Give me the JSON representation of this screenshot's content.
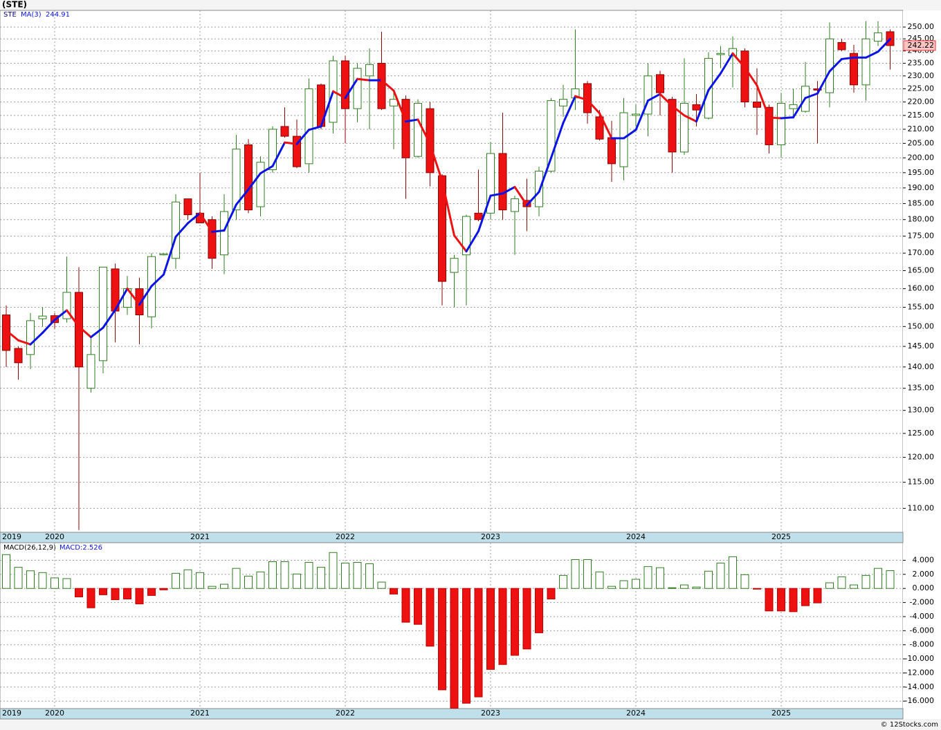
{
  "chart_data": [
    {
      "type": "candlestick",
      "title": "(STE)",
      "symbol": "STE",
      "log_scale": true,
      "grid": true,
      "categories": [
        "2019",
        null,
        null,
        null,
        "2020",
        null,
        null,
        null,
        null,
        null,
        null,
        null,
        null,
        null,
        null,
        null,
        "2021",
        null,
        null,
        null,
        null,
        null,
        null,
        null,
        null,
        null,
        null,
        null,
        "2022",
        null,
        null,
        null,
        null,
        null,
        null,
        null,
        null,
        null,
        null,
        null,
        "2023",
        null,
        null,
        null,
        null,
        null,
        null,
        null,
        null,
        null,
        null,
        null,
        "2024",
        null,
        null,
        null,
        null,
        null,
        null,
        null,
        null,
        null,
        null,
        null,
        "2025",
        null,
        null,
        null,
        null,
        null,
        null,
        null,
        null,
        null
      ],
      "open": [
        153,
        144.5,
        143,
        152,
        152.8,
        152,
        159,
        135,
        141.5,
        165.5,
        155,
        160,
        152.5,
        169.5,
        168.5,
        186.5,
        182,
        180,
        169.5,
        183,
        204.5,
        184,
        196,
        211,
        207.5,
        198,
        226.5,
        212.5,
        236,
        217.5,
        230,
        235,
        218.5,
        221,
        200.5,
        217.5,
        194,
        164.5,
        169.5,
        182,
        182,
        201.5,
        182.5,
        186,
        184,
        195.5,
        218.5,
        221.5,
        227,
        214.5,
        207,
        197,
        215,
        215.5,
        230.5,
        221,
        202,
        219,
        214,
        238.5,
        238,
        240,
        220,
        218,
        204.5,
        217.5,
        216.5,
        225,
        223.5,
        243.5,
        239,
        226.5,
        244,
        248
      ],
      "high": [
        155.5,
        145,
        153.5,
        155,
        153.5,
        169,
        166,
        147,
        166,
        167,
        163.5,
        163,
        170,
        170,
        188,
        186.5,
        195,
        181,
        188,
        208,
        206.5,
        200.5,
        211,
        218,
        213.5,
        229,
        227,
        238,
        238,
        235,
        241,
        248,
        224,
        222.5,
        221,
        220,
        194.5,
        169.5,
        181.5,
        196,
        205.5,
        216,
        187.5,
        193,
        197,
        221.5,
        226.5,
        249,
        228,
        217,
        213,
        221.5,
        219,
        235,
        232,
        222,
        237,
        223,
        239.5,
        242,
        246,
        241,
        233,
        219,
        223.5,
        225,
        235.5,
        228,
        252,
        245,
        242.5,
        252.5,
        252.5,
        249
      ],
      "low": [
        140,
        137,
        139.5,
        150,
        149.5,
        151,
        106,
        134,
        138.5,
        146,
        153,
        145.5,
        149.5,
        169.3,
        165.5,
        180,
        179,
        165.5,
        164,
        180,
        182,
        181,
        195,
        207,
        196.5,
        195,
        210,
        208.5,
        205,
        212.5,
        210,
        217,
        203,
        186.5,
        200,
        190.5,
        155.5,
        155,
        155.5,
        179.5,
        180,
        180,
        169.5,
        176.5,
        181,
        195,
        214.5,
        217,
        212,
        206,
        192,
        192.5,
        211,
        207.5,
        215,
        195,
        201,
        211,
        213.5,
        233,
        225.5,
        218,
        208,
        201.5,
        200,
        215,
        216,
        205,
        218,
        240,
        223.5,
        220.5,
        242,
        232.5
      ],
      "close": [
        144,
        141,
        151.5,
        152.7,
        151,
        159,
        140,
        143,
        166,
        154,
        160,
        153,
        169,
        169.8,
        185.5,
        181.5,
        179,
        168.5,
        182.5,
        203,
        183,
        198.5,
        210,
        207.5,
        197,
        225,
        211,
        236,
        217.5,
        233,
        234.5,
        217.5,
        221,
        200,
        219.5,
        195,
        162,
        168.5,
        181,
        180,
        201.5,
        183,
        186.5,
        184,
        195.5,
        220.5,
        221,
        225,
        216,
        206.5,
        198,
        216,
        215.5,
        230,
        223.5,
        202,
        219.5,
        217,
        237,
        239,
        241,
        220,
        218,
        204.5,
        219.5,
        219,
        226,
        224.5,
        245,
        240.5,
        226.5,
        245,
        247.5,
        242.22
      ],
      "close_label": "242.22",
      "up_color": "#2e7d1e",
      "down_color": "#ee1111",
      "series": [
        {
          "name": "MA(3)",
          "value_label": "244.91",
          "up_color": "#0a14e6",
          "down_color": "#ee1111",
          "values": [
            149,
            146.5,
            145.5,
            148.4,
            151.7,
            154.2,
            150,
            147.3,
            149.7,
            154.3,
            160,
            155.7,
            160.7,
            163.9,
            174.8,
            178.9,
            182,
            176.3,
            176.7,
            184.7,
            189.5,
            194.8,
            197.2,
            205.3,
            204.8,
            209.8,
            211,
            224,
            221.5,
            228.8,
            228.3,
            228.3,
            224.3,
            212.8,
            213.5,
            204.8,
            192.2,
            175.2,
            170.5,
            176.5,
            187.5,
            188.2,
            190.3,
            184.5,
            188.7,
            200,
            212.3,
            222.2,
            220.7,
            215.8,
            206.8,
            206.8,
            209.8,
            220.5,
            223,
            218.5,
            215,
            212.8,
            224.5,
            231,
            239,
            233.3,
            226.3,
            214.2,
            214,
            214.3,
            221.5,
            223.2,
            231.8,
            236.7,
            237.3,
            237.3,
            239.7,
            244.91
          ]
        }
      ],
      "ylim": [
        105.6,
        257.2
      ],
      "yticks": [
        {
          "value": 110,
          "label": "110.00"
        },
        {
          "value": 115,
          "label": "115.00"
        },
        {
          "value": 120,
          "label": "120.00"
        },
        {
          "value": 125,
          "label": "125.00"
        },
        {
          "value": 130,
          "label": "130.00"
        },
        {
          "value": 135,
          "label": "135.00"
        },
        {
          "value": 140,
          "label": "140.00"
        },
        {
          "value": 145,
          "label": "145.00"
        },
        {
          "value": 150,
          "label": "150.00"
        },
        {
          "value": 155,
          "label": "155.00"
        },
        {
          "value": 160,
          "label": "160.00"
        },
        {
          "value": 165,
          "label": "165.00"
        },
        {
          "value": 170,
          "label": "170.00"
        },
        {
          "value": 175,
          "label": "175.00"
        },
        {
          "value": 180,
          "label": "180.00"
        },
        {
          "value": 185,
          "label": "185.00"
        },
        {
          "value": 190,
          "label": "190.00"
        },
        {
          "value": 195,
          "label": "195.00"
        },
        {
          "value": 200,
          "label": "200.00"
        },
        {
          "value": 205,
          "label": "205.00"
        },
        {
          "value": 210,
          "label": "210.00"
        },
        {
          "value": 215,
          "label": "215.00"
        },
        {
          "value": 220,
          "label": "220.00"
        },
        {
          "value": 225,
          "label": "225.00"
        },
        {
          "value": 230,
          "label": "230.00"
        },
        {
          "value": 235,
          "label": "235.00"
        },
        {
          "value": 240,
          "label": "240.00"
        },
        {
          "value": 245,
          "label": "245.00"
        },
        {
          "value": 250,
          "label": "250.00"
        }
      ]
    },
    {
      "type": "bar",
      "title": "MACD(26,12,9)",
      "value_label": "MACD:2.526",
      "grid": true,
      "up_color": "#2e7d1e",
      "down_color": "#ee1111",
      "values": [
        4.8,
        3.0,
        2.5,
        2.25,
        1.5,
        1.4,
        -1.2,
        -2.75,
        -0.9,
        -1.6,
        -1.5,
        -2.2,
        -1.0,
        -0.2,
        2.15,
        2.65,
        2.25,
        0.3,
        0.6,
        2.85,
        1.75,
        2.35,
        3.8,
        3.8,
        2.05,
        3.7,
        3.0,
        5.1,
        3.6,
        3.7,
        3.5,
        0.9,
        -0.8,
        -4.8,
        -5.1,
        -8.2,
        -14.4,
        -17,
        -16.3,
        -15.4,
        -11.5,
        -10.8,
        -9.5,
        -8.6,
        -6.3,
        -1.5,
        1.85,
        4.1,
        4.1,
        2.35,
        0.3,
        1.1,
        1.3,
        3.1,
        2.95,
        0.1,
        0.5,
        0.2,
        2.45,
        3.6,
        4.5,
        1.95,
        -0.1,
        -3.2,
        -3.2,
        -3.3,
        -2.45,
        -2.05,
        0.8,
        1.65,
        0.5,
        1.85,
        2.85,
        2.526
      ],
      "ylim": [
        -17.06,
        6.5
      ],
      "yticks": [
        {
          "value": 4,
          "label": "4.000"
        },
        {
          "value": 2,
          "label": "2.000"
        },
        {
          "value": 0,
          "label": "0.000"
        },
        {
          "value": -2,
          "label": "-2.000"
        },
        {
          "value": -4,
          "label": "-4.000"
        },
        {
          "value": -6,
          "label": "-6.000"
        },
        {
          "value": -8,
          "label": "-8.000"
        },
        {
          "value": -10,
          "label": "-10.000"
        },
        {
          "value": -12,
          "label": "-12.000"
        },
        {
          "value": -14,
          "label": "-14.000"
        },
        {
          "value": -16,
          "label": "-16.000"
        }
      ]
    }
  ],
  "footer": "© 12Stocks.com"
}
